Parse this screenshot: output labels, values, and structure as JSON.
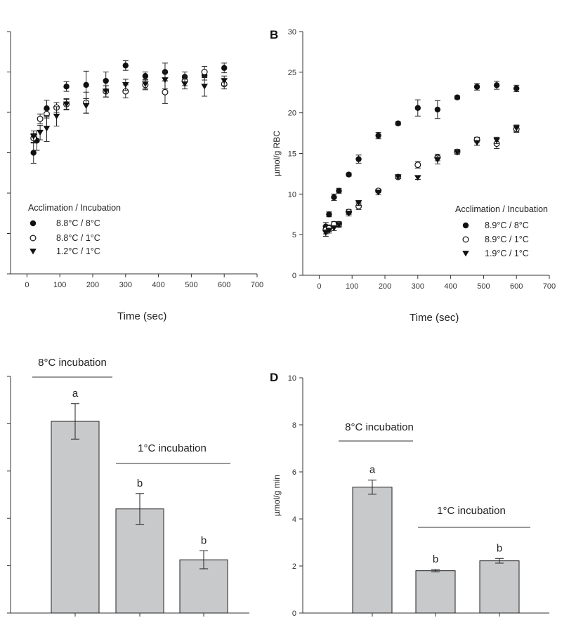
{
  "chart_data": [
    {
      "panel": "",
      "type": "scatter",
      "xlabel": "Time (sec)",
      "ylabel": "",
      "xlim": [
        -50,
        700
      ],
      "xticks": [
        "0",
        "100",
        "200",
        "300",
        "400",
        "500",
        "600",
        "700"
      ],
      "ylim": [
        0,
        30
      ],
      "legend_title": "Acclimation / Incubation",
      "series": [
        {
          "name": "8.8°C / 8°C",
          "marker": "filled-circle",
          "x": [
            20,
            30,
            60,
            120,
            180,
            240,
            300,
            360,
            420,
            480,
            540,
            600
          ],
          "y": [
            15,
            16.5,
            20.5,
            23.2,
            23.4,
            23.9,
            25.8,
            24.5,
            25,
            24.4,
            24.6,
            25.5
          ],
          "err": [
            1.3,
            1.2,
            1,
            0.6,
            1.7,
            1.1,
            0.6,
            0.5,
            1.1,
            0.6,
            0.6,
            0.6
          ]
        },
        {
          "name": "8.8°C / 1°C",
          "marker": "open-circle",
          "x": [
            20,
            40,
            60,
            90,
            120,
            180,
            240,
            300,
            360,
            420,
            480,
            540,
            600
          ],
          "y": [
            16.8,
            19.2,
            19.8,
            20.6,
            21,
            21.2,
            22.6,
            22.6,
            23.4,
            22.5,
            23.9,
            25,
            23.5
          ],
          "err": [
            0.6,
            0.6,
            0.5,
            0.6,
            0.7,
            1.3,
            0.7,
            0.8,
            0.6,
            1.4,
            0.6,
            0.7,
            0.6
          ]
        },
        {
          "name": "1.2°C / 1°C",
          "marker": "filled-triangle",
          "x": [
            20,
            40,
            60,
            90,
            120,
            180,
            240,
            300,
            360,
            420,
            480,
            540,
            600
          ],
          "y": [
            17,
            17.5,
            18,
            19.5,
            21,
            20.8,
            22.6,
            23.4,
            23.5,
            24,
            23.5,
            23.2,
            23.9
          ],
          "err": [
            0.7,
            0.9,
            1.6,
            1.2,
            0.6,
            0.9,
            0.7,
            0.7,
            0.6,
            1.1,
            0.6,
            1.2,
            0.6
          ]
        }
      ]
    },
    {
      "panel": "B",
      "type": "scatter",
      "xlabel": "Time (sec)",
      "ylabel": "µmol/g RBC",
      "xlim": [
        -50,
        700
      ],
      "xticks": [
        "0",
        "100",
        "200",
        "300",
        "400",
        "500",
        "600",
        "700"
      ],
      "ylim": [
        0,
        30
      ],
      "yticks": [
        "0",
        "5",
        "10",
        "15",
        "20",
        "25",
        "30"
      ],
      "legend_title": "Acclimation / Incubation",
      "series": [
        {
          "name": "8.9°C / 8°C",
          "marker": "filled-circle",
          "x": [
            20,
            30,
            45,
            60,
            90,
            120,
            180,
            240,
            300,
            360,
            420,
            480,
            540,
            600
          ],
          "y": [
            6,
            7.5,
            9.6,
            10.4,
            12.4,
            14.3,
            17.2,
            18.7,
            20.6,
            20.4,
            21.9,
            23.2,
            23.4,
            23
          ],
          "err": [
            0.5,
            0.3,
            0.4,
            0.3,
            0.2,
            0.5,
            0.4,
            0.2,
            1,
            1.1,
            0.2,
            0.4,
            0.5,
            0.4
          ]
        },
        {
          "name": "8.9°C / 1°C",
          "marker": "open-circle",
          "x": [
            20,
            30,
            45,
            60,
            90,
            120,
            180,
            240,
            300,
            360,
            420,
            480,
            540,
            600
          ],
          "y": [
            5.6,
            5.8,
            6.3,
            6.3,
            7.8,
            8.5,
            10.4,
            12.1,
            13.6,
            14.5,
            15.2,
            16.7,
            16.2,
            18
          ],
          "err": [
            0.5,
            0.4,
            0.3,
            0.3,
            0.3,
            0.4,
            0.2,
            0.2,
            0.4,
            0.4,
            0.3,
            0.3,
            0.6,
            0.4
          ]
        },
        {
          "name": "1.9°C / 1°C",
          "marker": "filled-triangle",
          "x": [
            20,
            30,
            45,
            60,
            90,
            120,
            180,
            240,
            300,
            360,
            420,
            480,
            540,
            600
          ],
          "y": [
            5.2,
            5.5,
            5.8,
            6.2,
            7.6,
            8.9,
            10.2,
            12.1,
            12,
            14.2,
            15.1,
            16.3,
            16.6,
            18.1
          ],
          "err": [
            0.4,
            0.3,
            0.3,
            0.3,
            0.3,
            0.3,
            0.3,
            0.2,
            0.2,
            0.5,
            0.2,
            0.3,
            0.4,
            0.4
          ]
        }
      ]
    },
    {
      "panel": "",
      "type": "bar",
      "ylabel": "",
      "ylim": [
        0,
        10
      ],
      "values": [
        8.1,
        4.4,
        2.25
      ],
      "err": [
        0.75,
        0.65,
        0.38
      ],
      "significance": [
        "a",
        "b",
        "b"
      ],
      "groups": [
        {
          "label": "8°C incubation",
          "bars": [
            0
          ]
        },
        {
          "label": "1°C incubation",
          "bars": [
            1,
            2
          ]
        }
      ]
    },
    {
      "panel": "D",
      "type": "bar",
      "ylabel": "µmol/g min",
      "ylim": [
        0,
        10
      ],
      "yticks": [
        "0",
        "2",
        "4",
        "6",
        "8",
        "10"
      ],
      "values": [
        5.35,
        1.8,
        2.22
      ],
      "err": [
        0.3,
        0.05,
        0.1
      ],
      "significance": [
        "a",
        "b",
        "b"
      ],
      "groups": [
        {
          "label": "8°C incubation",
          "bars": [
            0
          ]
        },
        {
          "label": "1°C incubation",
          "bars": [
            1,
            2
          ]
        }
      ]
    }
  ]
}
